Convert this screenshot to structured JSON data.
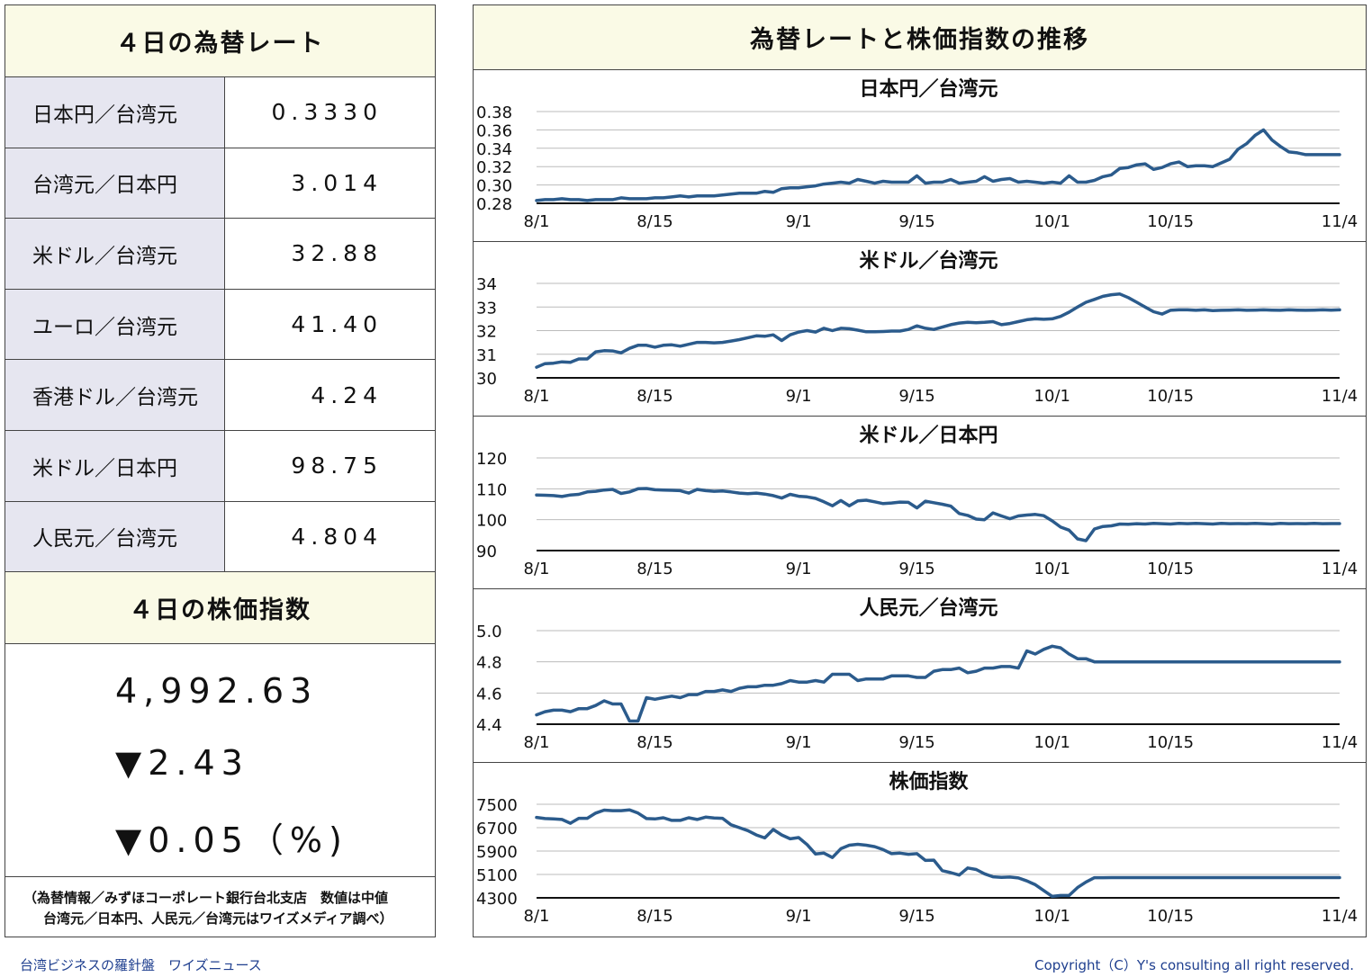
{
  "rates_panel": {
    "title": "４日の為替レート",
    "rows": [
      {
        "label": "日本円／台湾元",
        "value": "0.3330"
      },
      {
        "label": "台湾元／日本円",
        "value": "3.014"
      },
      {
        "label": "米ドル／台湾元",
        "value": "32.88"
      },
      {
        "label": "ユーロ／台湾元",
        "value": "41.40"
      },
      {
        "label": "香港ドル／台湾元",
        "value": "4.24"
      },
      {
        "label": "米ドル／日本円",
        "value": "98.75"
      },
      {
        "label": "人民元／台湾元",
        "value": "4.804"
      }
    ]
  },
  "stock_panel": {
    "title": "４日の株価指数",
    "index_value": "4,992.63",
    "change": "▼2.43",
    "change_pct": "▼0.05（%)"
  },
  "note": {
    "line1": "（為替情報／みずほコーポレート銀行台北支店　数値は中値",
    "line2": "台湾元／日本円、人民元／台湾元はワイズメディア調べ）"
  },
  "charts_panel": {
    "title": "為替レートと株価指数の推移"
  },
  "footer": {
    "left": "台湾ビジネスの羅針盤　ワイズニュース",
    "right": "Copyright（C）Y's consulting all right reserved."
  },
  "colors": {
    "line": "#2b5b8c",
    "header_bg": "#fafae6",
    "label_bg": "#e6e6f0",
    "footer_text": "#1f3f8f"
  },
  "chart_data": [
    {
      "type": "line",
      "title": "日本円／台湾元",
      "x_tick_labels": [
        "8/1",
        "8/15",
        "9/1",
        "9/15",
        "10/1",
        "10/15",
        "11/4"
      ],
      "x_tick_positions": [
        0,
        14,
        31,
        45,
        61,
        75,
        95
      ],
      "ylim": [
        0.28,
        0.38
      ],
      "yticks": [
        "0.38",
        "0.36",
        "0.34",
        "0.32",
        "0.30",
        "0.28"
      ],
      "values": [
        0.283,
        0.284,
        0.284,
        0.285,
        0.284,
        0.284,
        0.283,
        0.284,
        0.284,
        0.284,
        0.286,
        0.285,
        0.285,
        0.285,
        0.286,
        0.286,
        0.287,
        0.288,
        0.287,
        0.288,
        0.288,
        0.288,
        0.289,
        0.29,
        0.291,
        0.291,
        0.291,
        0.293,
        0.292,
        0.296,
        0.297,
        0.297,
        0.298,
        0.299,
        0.301,
        0.302,
        0.303,
        0.302,
        0.306,
        0.304,
        0.302,
        0.304,
        0.303,
        0.303,
        0.303,
        0.31,
        0.302,
        0.303,
        0.303,
        0.306,
        0.302,
        0.303,
        0.304,
        0.309,
        0.304,
        0.306,
        0.307,
        0.303,
        0.304,
        0.303,
        0.302,
        0.303,
        0.302,
        0.31,
        0.303,
        0.303,
        0.305,
        0.309,
        0.311,
        0.318,
        0.319,
        0.322,
        0.323,
        0.317,
        0.319,
        0.323,
        0.325,
        0.32,
        0.321,
        0.321,
        0.32,
        0.324,
        0.328,
        0.339,
        0.345,
        0.354,
        0.36,
        0.349,
        0.342,
        0.336,
        0.335,
        0.333,
        0.333,
        0.333,
        0.333,
        0.333
      ]
    },
    {
      "type": "line",
      "title": "米ドル／台湾元",
      "x_tick_labels": [
        "8/1",
        "8/15",
        "9/1",
        "9/15",
        "10/1",
        "10/15",
        "11/4"
      ],
      "x_tick_positions": [
        0,
        14,
        31,
        45,
        61,
        75,
        95
      ],
      "ylim": [
        30,
        34
      ],
      "yticks": [
        "34",
        "33",
        "32",
        "31",
        "30"
      ],
      "values": [
        30.45,
        30.6,
        30.62,
        30.68,
        30.66,
        30.8,
        30.8,
        31.1,
        31.15,
        31.14,
        31.06,
        31.25,
        31.38,
        31.38,
        31.3,
        31.38,
        31.4,
        31.34,
        31.42,
        31.5,
        31.5,
        31.48,
        31.5,
        31.56,
        31.62,
        31.7,
        31.78,
        31.76,
        31.82,
        31.58,
        31.82,
        31.94,
        32.0,
        31.94,
        32.1,
        32.0,
        32.1,
        32.08,
        32.02,
        31.95,
        31.95,
        31.96,
        31.98,
        31.98,
        32.05,
        32.2,
        32.1,
        32.05,
        32.15,
        32.25,
        32.32,
        32.35,
        32.33,
        32.35,
        32.38,
        32.25,
        32.3,
        32.38,
        32.46,
        32.5,
        32.48,
        32.5,
        32.6,
        32.78,
        33.0,
        33.2,
        33.32,
        33.45,
        33.52,
        33.55,
        33.4,
        33.2,
        33.0,
        32.8,
        32.7,
        32.86,
        32.88,
        32.88,
        32.86,
        32.88,
        32.85,
        32.86,
        32.87,
        32.88,
        32.86,
        32.87,
        32.88,
        32.87,
        32.86,
        32.88,
        32.87,
        32.86,
        32.87,
        32.88,
        32.87,
        32.88
      ]
    },
    {
      "type": "line",
      "title": "米ドル／日本円",
      "x_tick_labels": [
        "8/1",
        "8/15",
        "9/1",
        "9/15",
        "10/1",
        "10/15",
        "11/4"
      ],
      "x_tick_positions": [
        0,
        14,
        31,
        45,
        61,
        75,
        95
      ],
      "ylim": [
        90,
        120
      ],
      "yticks": [
        "120",
        "110",
        "100",
        "90"
      ],
      "values": [
        108.0,
        107.9,
        107.8,
        107.5,
        108.0,
        108.2,
        109.0,
        109.2,
        109.6,
        109.8,
        108.5,
        109.0,
        110.0,
        110.1,
        109.7,
        109.6,
        109.5,
        109.4,
        108.6,
        109.8,
        109.4,
        109.2,
        109.3,
        109.0,
        108.6,
        108.4,
        108.6,
        108.3,
        107.8,
        107.0,
        108.2,
        107.6,
        107.4,
        106.9,
        105.8,
        104.5,
        106.2,
        104.5,
        106.1,
        106.3,
        105.8,
        105.2,
        105.4,
        105.7,
        105.6,
        103.8,
        106.0,
        105.5,
        105.0,
        104.4,
        102.0,
        101.4,
        100.2,
        100.0,
        102.2,
        101.2,
        100.3,
        101.2,
        101.5,
        101.7,
        101.3,
        99.6,
        97.6,
        96.6,
        93.8,
        93.2,
        97.0,
        97.8,
        98.0,
        98.6,
        98.5,
        98.7,
        98.6,
        98.8,
        98.7,
        98.6,
        98.8,
        98.7,
        98.8,
        98.7,
        98.6,
        98.8,
        98.7,
        98.75,
        98.7,
        98.8,
        98.7,
        98.6,
        98.8,
        98.7,
        98.75,
        98.7,
        98.8,
        98.7,
        98.75,
        98.75
      ]
    },
    {
      "type": "line",
      "title": "人民元／台湾元",
      "x_tick_labels": [
        "8/1",
        "8/15",
        "9/1",
        "9/15",
        "10/1",
        "10/15",
        "11/4"
      ],
      "x_tick_positions": [
        0,
        14,
        31,
        45,
        61,
        75,
        95
      ],
      "ylim": [
        4.4,
        5.0
      ],
      "yticks": [
        "5.0",
        "4.8",
        "4.6",
        "4.4"
      ],
      "values": [
        4.46,
        4.48,
        4.49,
        4.49,
        4.48,
        4.5,
        4.5,
        4.52,
        4.55,
        4.53,
        4.53,
        4.42,
        4.42,
        4.57,
        4.56,
        4.57,
        4.58,
        4.57,
        4.59,
        4.59,
        4.61,
        4.61,
        4.62,
        4.61,
        4.63,
        4.64,
        4.64,
        4.65,
        4.65,
        4.66,
        4.68,
        4.67,
        4.67,
        4.68,
        4.67,
        4.72,
        4.72,
        4.72,
        4.68,
        4.69,
        4.69,
        4.69,
        4.71,
        4.71,
        4.71,
        4.7,
        4.7,
        4.74,
        4.75,
        4.75,
        4.76,
        4.73,
        4.74,
        4.76,
        4.76,
        4.77,
        4.77,
        4.76,
        4.87,
        4.85,
        4.88,
        4.9,
        4.89,
        4.85,
        4.82,
        4.82,
        4.8,
        4.8,
        4.8,
        4.8,
        4.8,
        4.8,
        4.8,
        4.8,
        4.8,
        4.8,
        4.8,
        4.8,
        4.8,
        4.8,
        4.8,
        4.8,
        4.8,
        4.8,
        4.8,
        4.8,
        4.8,
        4.8,
        4.8,
        4.8,
        4.8,
        4.8,
        4.8,
        4.8,
        4.8,
        4.8
      ]
    },
    {
      "type": "line",
      "title": "株価指数",
      "x_tick_labels": [
        "8/1",
        "8/15",
        "9/1",
        "9/15",
        "10/1",
        "10/15",
        "11/4"
      ],
      "x_tick_positions": [
        0,
        14,
        31,
        45,
        61,
        75,
        95
      ],
      "ylim": [
        4300,
        7500
      ],
      "yticks": [
        "7500",
        "6700",
        "5900",
        "5100",
        "4300"
      ],
      "values": [
        7050,
        7010,
        7000,
        6980,
        6850,
        7020,
        7020,
        7200,
        7300,
        7280,
        7280,
        7310,
        7200,
        7010,
        7000,
        7040,
        6950,
        6950,
        7040,
        6980,
        7060,
        7030,
        7020,
        6800,
        6700,
        6600,
        6450,
        6350,
        6640,
        6450,
        6320,
        6360,
        6120,
        5800,
        5830,
        5680,
        5980,
        6100,
        6130,
        6100,
        6050,
        5950,
        5810,
        5830,
        5790,
        5810,
        5580,
        5590,
        5230,
        5160,
        5080,
        5320,
        5270,
        5120,
        5020,
        5000,
        5010,
        4980,
        4880,
        4750,
        4550,
        4350,
        4380,
        4380,
        4650,
        4840,
        4990,
        4990,
        4992,
        4992,
        4992,
        4992,
        4992,
        4992,
        4992,
        4992,
        4992,
        4992,
        4992,
        4992,
        4992,
        4992,
        4992,
        4992,
        4992,
        4992,
        4992,
        4992,
        4992,
        4992,
        4992,
        4992,
        4992,
        4992,
        4992,
        4992
      ]
    }
  ]
}
